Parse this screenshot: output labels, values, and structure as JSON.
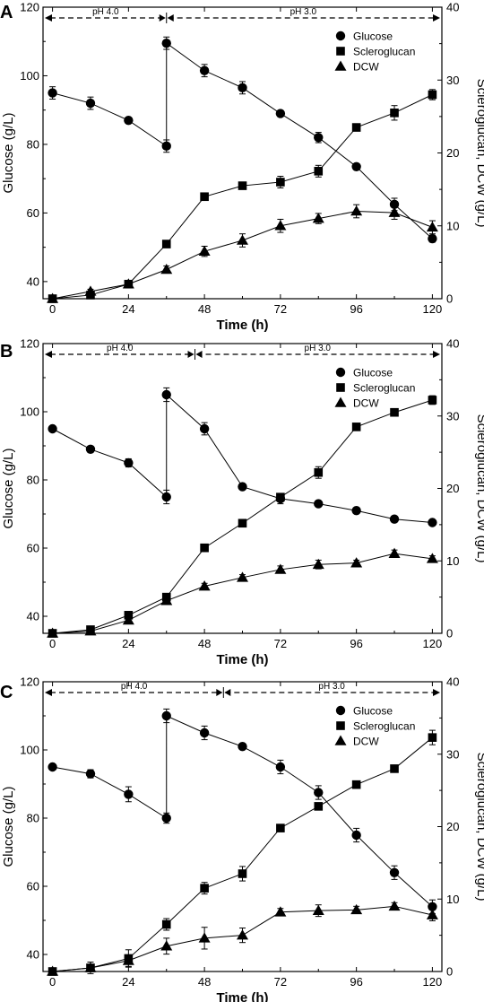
{
  "figure": {
    "panels": [
      "A",
      "B",
      "C"
    ]
  },
  "chart_data": [
    {
      "panel": "A",
      "type": "line",
      "xlabel": "Time (h)",
      "ylabel_left": "Glucose (g/L)",
      "ylabel_right": "Scleroglucan, DCW (g/L)",
      "xlim": [
        -3,
        123
      ],
      "xticks": [
        0,
        24,
        48,
        72,
        96,
        120
      ],
      "ylim_left": [
        35,
        120
      ],
      "yticks_left": [
        40,
        60,
        80,
        100,
        120
      ],
      "ylim_right": [
        0,
        40
      ],
      "yticks_right": [
        0,
        10,
        20,
        30,
        40
      ],
      "phase_boundary": 36,
      "phase_labels": [
        "pH 4.0",
        "pH 3.0"
      ],
      "legend": [
        "Glucose",
        "Scleroglucan",
        "DCW"
      ],
      "legend_position": "top-right",
      "series": [
        {
          "name": "Glucose",
          "marker": "circle",
          "axis": "left",
          "x": [
            0,
            12,
            24,
            36,
            36,
            48,
            60,
            72,
            84,
            96,
            108,
            120
          ],
          "y": [
            95,
            92,
            87,
            79.5,
            109.5,
            101.5,
            96.5,
            89,
            82,
            73.5,
            62.5,
            52.5
          ],
          "err": [
            1.8,
            1.8,
            0.8,
            1.8,
            1.8,
            1.8,
            1.8,
            0.8,
            1.5,
            0.8,
            1.8,
            1.0
          ]
        },
        {
          "name": "Scleroglucan",
          "marker": "square",
          "axis": "right",
          "x": [
            0,
            12,
            24,
            36,
            48,
            60,
            72,
            84,
            96,
            108,
            120
          ],
          "y": [
            0,
            0.5,
            2,
            7.5,
            14,
            15.5,
            16,
            17.5,
            23.5,
            25.5,
            28
          ],
          "err": [
            0,
            0.3,
            0.3,
            0.3,
            0.3,
            0.3,
            0.8,
            0.8,
            0.3,
            1.0,
            0.7
          ]
        },
        {
          "name": "DCW",
          "marker": "triangle",
          "axis": "right",
          "x": [
            0,
            12,
            24,
            36,
            48,
            60,
            72,
            84,
            96,
            108,
            120
          ],
          "y": [
            0,
            1,
            2,
            4,
            6.5,
            8,
            10,
            11,
            12,
            11.8,
            9.8
          ],
          "err": [
            0,
            0.3,
            0.3,
            0.5,
            0.7,
            0.9,
            0.9,
            0.7,
            0.9,
            0.9,
            0.9
          ]
        }
      ]
    },
    {
      "panel": "B",
      "type": "line",
      "xlabel": "Time (h)",
      "ylabel_left": "Glucose (g/L)",
      "ylabel_right": "Scleroglucan, DCW (g/L)",
      "xlim": [
        -3,
        123
      ],
      "xticks": [
        0,
        24,
        48,
        72,
        96,
        120
      ],
      "ylim_left": [
        35,
        120
      ],
      "yticks_left": [
        40,
        60,
        80,
        100,
        120
      ],
      "ylim_right": [
        0,
        40
      ],
      "yticks_right": [
        0,
        10,
        20,
        30,
        40
      ],
      "phase_boundary": 45,
      "phase_labels": [
        "pH 4.0",
        "pH 3.0"
      ],
      "legend": [
        "Glucose",
        "Scleroglucan",
        "DCW"
      ],
      "legend_position": "top-right",
      "series": [
        {
          "name": "Glucose",
          "marker": "circle",
          "axis": "left",
          "x": [
            0,
            12,
            24,
            36,
            36,
            48,
            60,
            72,
            84,
            96,
            108,
            120
          ],
          "y": [
            95,
            89,
            85,
            75,
            105,
            95,
            78,
            74.5,
            73,
            71,
            68.5,
            67.5
          ],
          "err": [
            0.5,
            0.5,
            1.2,
            2.0,
            2.0,
            1.8,
            0.5,
            1.5,
            0.5,
            0.5,
            0.5,
            0.5
          ]
        },
        {
          "name": "Scleroglucan",
          "marker": "square",
          "axis": "right",
          "x": [
            0,
            12,
            24,
            36,
            48,
            60,
            72,
            84,
            96,
            108,
            120
          ],
          "y": [
            0,
            0.5,
            2.5,
            5,
            11.8,
            15.2,
            18.8,
            22.2,
            28.5,
            30.5,
            32.2
          ],
          "err": [
            0,
            0.2,
            0.3,
            0.4,
            0.3,
            0.3,
            0.5,
            0.8,
            0.3,
            0.3,
            0.6
          ]
        },
        {
          "name": "DCW",
          "marker": "triangle",
          "axis": "right",
          "x": [
            0,
            12,
            24,
            36,
            48,
            60,
            72,
            84,
            96,
            108,
            120
          ],
          "y": [
            0,
            0.3,
            1.8,
            4.5,
            6.5,
            7.7,
            8.8,
            9.5,
            9.7,
            11,
            10.3
          ],
          "err": [
            0,
            0.3,
            0.3,
            0.4,
            0.4,
            0.4,
            0.5,
            0.6,
            0.4,
            0.5,
            0.4
          ]
        }
      ]
    },
    {
      "panel": "C",
      "type": "line",
      "xlabel": "Time (h)",
      "ylabel_left": "Glucose (g/L)",
      "ylabel_right": "Scleroglucan, DCW (g/L)",
      "xlim": [
        -3,
        123
      ],
      "xticks": [
        0,
        24,
        48,
        72,
        96,
        120
      ],
      "ylim_left": [
        35,
        120
      ],
      "yticks_left": [
        40,
        60,
        80,
        100,
        120
      ],
      "ylim_right": [
        0,
        40
      ],
      "yticks_right": [
        0,
        10,
        20,
        30,
        40
      ],
      "phase_boundary": 54,
      "phase_labels": [
        "pH 4.0",
        "pH 3.0"
      ],
      "legend": [
        "Glucose",
        "Scleroglucan",
        "DCW"
      ],
      "legend_position": "top-right",
      "series": [
        {
          "name": "Glucose",
          "marker": "circle",
          "axis": "left",
          "x": [
            0,
            12,
            24,
            36,
            36,
            48,
            60,
            72,
            84,
            96,
            108,
            120
          ],
          "y": [
            95,
            93,
            87,
            80,
            110,
            105,
            101,
            95,
            87.5,
            75,
            64,
            54
          ],
          "err": [
            0.5,
            1.2,
            2.2,
            1.5,
            2.0,
            2.0,
            0.5,
            2.0,
            2.0,
            2.0,
            2.0,
            2.0
          ]
        },
        {
          "name": "Scleroglucan",
          "marker": "square",
          "axis": "right",
          "x": [
            0,
            12,
            24,
            36,
            48,
            60,
            72,
            84,
            96,
            108,
            120
          ],
          "y": [
            0,
            0.5,
            1.8,
            6.5,
            11.5,
            13.5,
            19.8,
            22.8,
            25.8,
            28,
            32.3
          ],
          "err": [
            0,
            0.8,
            1.2,
            0.8,
            0.8,
            1.0,
            0.3,
            0.3,
            0.3,
            0.3,
            1.0
          ]
        },
        {
          "name": "DCW",
          "marker": "triangle",
          "axis": "right",
          "x": [
            0,
            12,
            24,
            36,
            48,
            60,
            72,
            84,
            96,
            108,
            120
          ],
          "y": [
            0,
            0.5,
            1.5,
            3.5,
            4.6,
            5,
            8.2,
            8.4,
            8.5,
            9,
            7.8
          ],
          "err": [
            0,
            0.3,
            0.8,
            1.1,
            1.5,
            1.0,
            0.5,
            0.8,
            0.5,
            0.5,
            0.8
          ]
        }
      ]
    }
  ]
}
